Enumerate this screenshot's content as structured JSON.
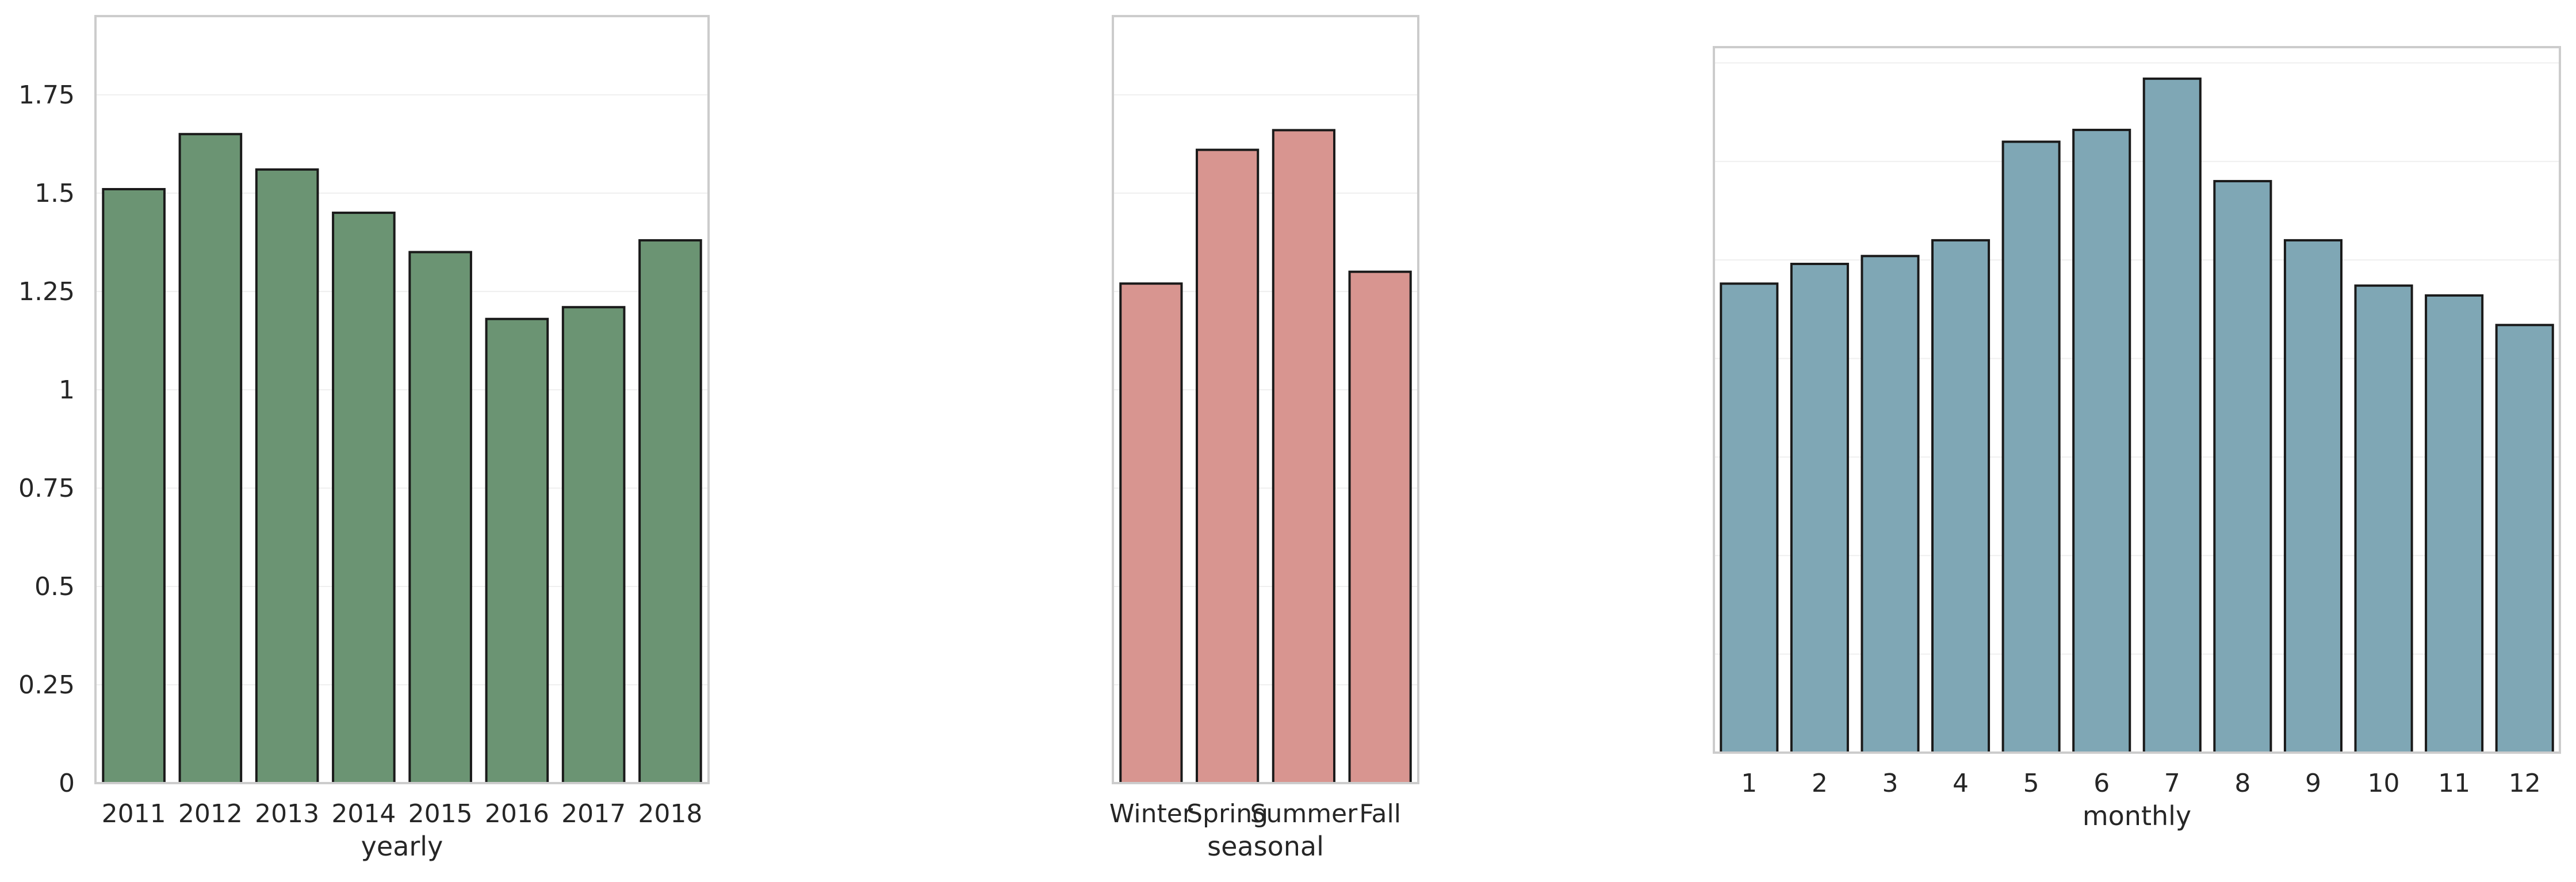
{
  "figure": {
    "panels": [
      "yearly",
      "seasonal",
      "monthly"
    ]
  },
  "chart_data": [
    {
      "type": "bar",
      "categories": [
        "2011",
        "2012",
        "2013",
        "2014",
        "2015",
        "2016",
        "2017",
        "2018"
      ],
      "values": [
        1.51,
        1.65,
        1.56,
        1.45,
        1.35,
        1.18,
        1.21,
        1.38
      ],
      "title": "",
      "xlabel": "yearly",
      "ylabel": "",
      "ylim": [
        0,
        1.95
      ],
      "yticks": [
        0,
        0.25,
        0.5,
        0.75,
        1,
        1.25,
        1.5,
        1.75
      ],
      "ytick_labels": [
        "0",
        "0.25",
        "0.5",
        "0.75",
        "1",
        "1.25",
        "1.5",
        "1.75"
      ],
      "grid": true,
      "bar_color": "#6b9473",
      "edge_color": "#1a1a1a"
    },
    {
      "type": "bar",
      "categories": [
        "Winter",
        "Spring",
        "Summer",
        "Fall"
      ],
      "values": [
        1.27,
        1.61,
        1.66,
        1.3
      ],
      "title": "",
      "xlabel": "seasonal",
      "ylabel": "",
      "ylim": [
        0,
        1.95
      ],
      "grid": true,
      "bar_color": "#d89590",
      "edge_color": "#1a1a1a"
    },
    {
      "type": "bar",
      "categories": [
        "1",
        "2",
        "3",
        "4",
        "5",
        "6",
        "7",
        "8",
        "9",
        "10",
        "11",
        "12"
      ],
      "values": [
        1.19,
        1.24,
        1.26,
        1.3,
        1.55,
        1.58,
        1.71,
        1.45,
        1.3,
        1.185,
        1.16,
        1.085
      ],
      "title": "",
      "xlabel": "monthly",
      "ylabel": "",
      "ylim": [
        0,
        1.79
      ],
      "grid": true,
      "bar_color": "#7fa7b5",
      "edge_color": "#1a1a1a"
    }
  ]
}
